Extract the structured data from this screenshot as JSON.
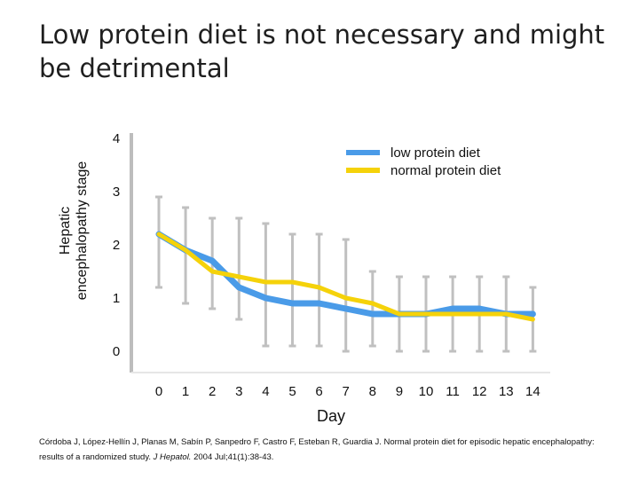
{
  "title": "Low protein diet is not necessary and might be detrimental",
  "citation": {
    "authors": "Córdoba J, López-Hellín J, Planas M, Sabín P, Sanpedro F, Castro F, Esteban R, Guardia J. Normal protein diet for episodic hepatic encephalopathy: results of a randomized study.",
    "journal": "J Hepatol.",
    "details": "2004 Jul;41(1):38-43."
  },
  "colors": {
    "low_protein": "#4a9be8",
    "normal_protein": "#f5d20a",
    "error_bar": "#c0c0c0",
    "axis": "#bdbdbd"
  },
  "chart_data": {
    "type": "line",
    "xlabel": "Day",
    "ylabel": "Hepatic encephalopathy stage",
    "x": [
      0,
      1,
      2,
      3,
      4,
      5,
      6,
      7,
      8,
      9,
      10,
      11,
      12,
      13,
      14
    ],
    "x_tick_labels": [
      "0",
      "1",
      "2",
      "3",
      "4",
      "5",
      "6",
      "7",
      "8",
      "9",
      "10",
      "11",
      "12",
      "13",
      "14"
    ],
    "y_ticks": [
      0,
      1,
      2,
      3,
      4
    ],
    "y_tick_labels": [
      "0",
      "1",
      "2",
      "3",
      "4"
    ],
    "ylim": [
      0,
      4
    ],
    "legend_position": "top-right",
    "series": [
      {
        "name": "low protein diet",
        "color": "#4a9be8",
        "values": [
          2.2,
          1.9,
          1.7,
          1.2,
          1.0,
          0.9,
          0.9,
          0.8,
          0.7,
          0.7,
          0.7,
          0.8,
          0.8,
          0.7,
          0.7
        ]
      },
      {
        "name": "normal protein diet",
        "color": "#f5d20a",
        "values": [
          2.2,
          1.9,
          1.5,
          1.4,
          1.3,
          1.3,
          1.2,
          1.0,
          0.9,
          0.7,
          0.7,
          0.7,
          0.7,
          0.7,
          0.6
        ]
      }
    ],
    "error_bars": [
      {
        "x": 0,
        "low": 1.2,
        "high": 2.9
      },
      {
        "x": 1,
        "low": 0.9,
        "high": 2.7
      },
      {
        "x": 2,
        "low": 0.8,
        "high": 2.5
      },
      {
        "x": 3,
        "low": 0.6,
        "high": 2.5
      },
      {
        "x": 4,
        "low": 0.1,
        "high": 2.4
      },
      {
        "x": 5,
        "low": 0.1,
        "high": 2.2
      },
      {
        "x": 6,
        "low": 0.1,
        "high": 2.2
      },
      {
        "x": 7,
        "low": 0.0,
        "high": 2.1
      },
      {
        "x": 8,
        "low": 0.1,
        "high": 1.5
      },
      {
        "x": 9,
        "low": 0.0,
        "high": 1.4
      },
      {
        "x": 10,
        "low": 0.0,
        "high": 1.4
      },
      {
        "x": 11,
        "low": 0.0,
        "high": 1.4
      },
      {
        "x": 12,
        "low": 0.0,
        "high": 1.4
      },
      {
        "x": 13,
        "low": 0.0,
        "high": 1.4
      },
      {
        "x": 14,
        "low": 0.0,
        "high": 1.2
      }
    ]
  }
}
